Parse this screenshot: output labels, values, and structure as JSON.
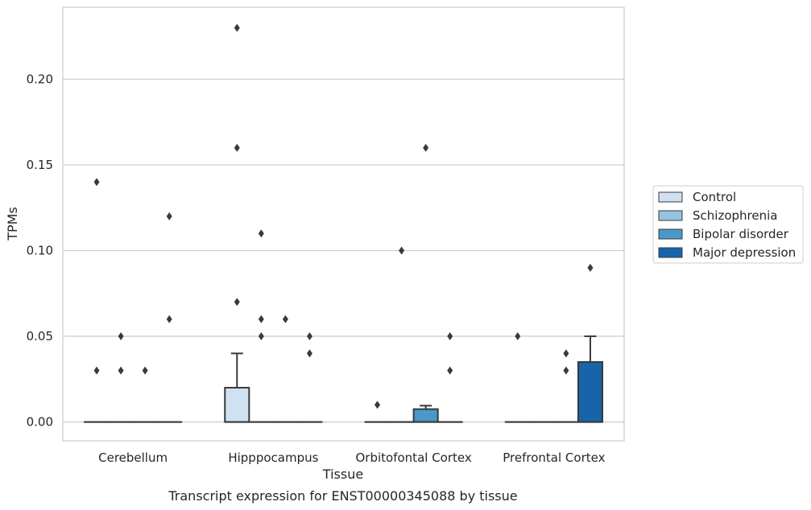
{
  "caption": "Transcript expression for ENST00000345088 by tissue",
  "chart_data": {
    "type": "box",
    "xlabel": "Tissue",
    "ylabel": "TPMs",
    "ylim": [
      -0.011,
      0.242
    ],
    "y_ticks": [
      "0.00",
      "0.05",
      "0.10",
      "0.15",
      "0.20"
    ],
    "y_tick_values": [
      0,
      0.05,
      0.1,
      0.15,
      0.2
    ],
    "grid": "horizontal",
    "legend_position": "right",
    "categories": [
      "Cerebellum",
      "Hipppocampus",
      "Orbitofontal Cortex",
      "Prefrontal Cortex"
    ],
    "series": [
      {
        "name": "Control",
        "color": "#d0e1f2",
        "boxes": [
          {
            "q1": 0,
            "median": 0,
            "q3": 0,
            "whisker_low": 0,
            "whisker_high": 0,
            "outliers": [
              0.14,
              0.03
            ]
          },
          {
            "q1": 0,
            "median": 0,
            "q3": 0.02,
            "whisker_low": 0,
            "whisker_high": 0.04,
            "outliers": [
              0.23,
              0.16,
              0.07
            ]
          },
          {
            "q1": 0,
            "median": 0,
            "q3": 0,
            "whisker_low": 0,
            "whisker_high": 0,
            "outliers": [
              0.01
            ]
          },
          {
            "q1": 0,
            "median": 0,
            "q3": 0,
            "whisker_low": 0,
            "whisker_high": 0,
            "outliers": [
              0.05
            ]
          }
        ]
      },
      {
        "name": "Schizophrenia",
        "color": "#94c4df",
        "boxes": [
          {
            "q1": 0,
            "median": 0,
            "q3": 0,
            "whisker_low": 0,
            "whisker_high": 0,
            "outliers": [
              0.05,
              0.03
            ]
          },
          {
            "q1": 0,
            "median": 0,
            "q3": 0,
            "whisker_low": 0,
            "whisker_high": 0,
            "outliers": [
              0.11,
              0.06,
              0.05
            ]
          },
          {
            "q1": 0,
            "median": 0,
            "q3": 0,
            "whisker_low": 0,
            "whisker_high": 0,
            "outliers": [
              0.1
            ]
          },
          {
            "q1": 0,
            "median": 0,
            "q3": 0,
            "whisker_low": 0,
            "whisker_high": 0,
            "outliers": []
          }
        ]
      },
      {
        "name": "Bipolar disorder",
        "color": "#4a98c9",
        "boxes": [
          {
            "q1": 0,
            "median": 0,
            "q3": 0,
            "whisker_low": 0,
            "whisker_high": 0,
            "outliers": [
              0.03
            ]
          },
          {
            "q1": 0,
            "median": 0,
            "q3": 0,
            "whisker_low": 0,
            "whisker_high": 0,
            "outliers": [
              0.06
            ]
          },
          {
            "q1": 0,
            "median": 0,
            "q3": 0.0075,
            "whisker_low": 0,
            "whisker_high": 0.0095,
            "outliers": [
              0.16
            ]
          },
          {
            "q1": 0,
            "median": 0,
            "q3": 0,
            "whisker_low": 0,
            "whisker_high": 0,
            "outliers": [
              0.04,
              0.03
            ]
          }
        ]
      },
      {
        "name": "Major depression",
        "color": "#1764ab",
        "boxes": [
          {
            "q1": 0,
            "median": 0,
            "q3": 0,
            "whisker_low": 0,
            "whisker_high": 0,
            "outliers": [
              0.12,
              0.06
            ]
          },
          {
            "q1": 0,
            "median": 0,
            "q3": 0,
            "whisker_low": 0,
            "whisker_high": 0,
            "outliers": [
              0.05,
              0.04
            ]
          },
          {
            "q1": 0,
            "median": 0,
            "q3": 0,
            "whisker_low": 0,
            "whisker_high": 0,
            "outliers": [
              0.05,
              0.03
            ]
          },
          {
            "q1": 0,
            "median": 0,
            "q3": 0.035,
            "whisker_low": 0,
            "whisker_high": 0.05,
            "outliers": [
              0.09
            ]
          }
        ]
      }
    ]
  }
}
